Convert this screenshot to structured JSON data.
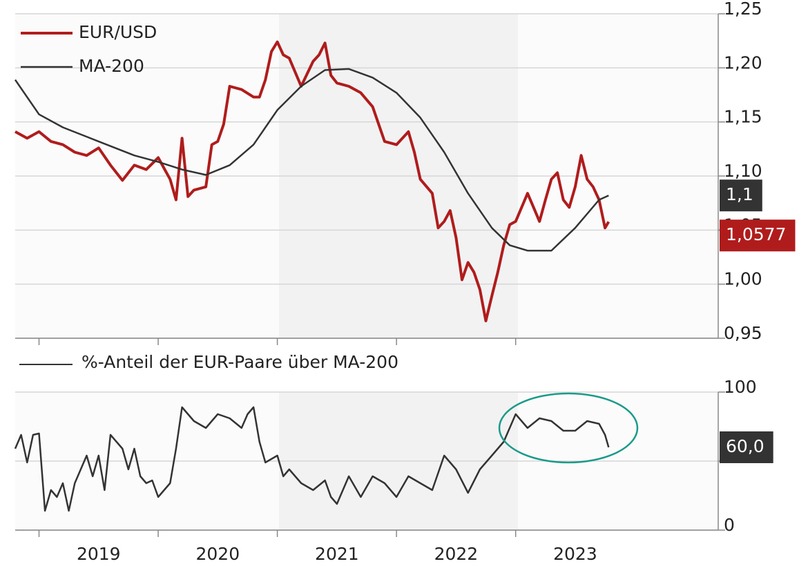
{
  "chart_data": [
    {
      "type": "line",
      "xlim": [
        2018.8,
        2024.7
      ],
      "ylim": [
        0.95,
        1.25
      ],
      "yticks": [
        {
          "value": 0.95,
          "label": "0,95"
        },
        {
          "value": 1.0,
          "label": "1,00"
        },
        {
          "value": 1.05,
          "label": "1,05"
        },
        {
          "value": 1.1,
          "label": "1,10"
        },
        {
          "value": 1.15,
          "label": "1,15"
        },
        {
          "value": 1.2,
          "label": "1,20"
        },
        {
          "value": 1.25,
          "label": "1,25"
        }
      ],
      "grid": true,
      "legend": "upper left",
      "series": [
        {
          "name": "EUR/USD",
          "color": "#b01c1c",
          "x": [
            2018.8,
            2018.9,
            2019.0,
            2019.1,
            2019.2,
            2019.3,
            2019.4,
            2019.5,
            2019.6,
            2019.7,
            2019.8,
            2019.9,
            2020.0,
            2020.1,
            2020.15,
            2020.2,
            2020.25,
            2020.3,
            2020.4,
            2020.45,
            2020.5,
            2020.55,
            2020.6,
            2020.7,
            2020.8,
            2020.85,
            2020.9,
            2020.95,
            2021.0,
            2021.05,
            2021.1,
            2021.2,
            2021.3,
            2021.35,
            2021.4,
            2021.45,
            2021.5,
            2021.6,
            2021.7,
            2021.8,
            2021.9,
            2022.0,
            2022.1,
            2022.15,
            2022.2,
            2022.3,
            2022.35,
            2022.4,
            2022.45,
            2022.5,
            2022.55,
            2022.6,
            2022.65,
            2022.7,
            2022.75,
            2022.8,
            2022.85,
            2022.9,
            2022.95,
            2023.0,
            2023.1,
            2023.15,
            2023.2,
            2023.25,
            2023.3,
            2023.35,
            2023.4,
            2023.45,
            2023.5,
            2023.55,
            2023.6,
            2023.65,
            2023.7,
            2023.75,
            2023.78
          ],
          "values": [
            1.141,
            1.135,
            1.141,
            1.132,
            1.129,
            1.122,
            1.119,
            1.126,
            1.11,
            1.096,
            1.11,
            1.106,
            1.117,
            1.097,
            1.078,
            1.135,
            1.081,
            1.087,
            1.09,
            1.129,
            1.132,
            1.148,
            1.183,
            1.18,
            1.173,
            1.173,
            1.189,
            1.215,
            1.224,
            1.212,
            1.209,
            1.183,
            1.206,
            1.212,
            1.223,
            1.193,
            1.186,
            1.183,
            1.177,
            1.164,
            1.132,
            1.129,
            1.141,
            1.122,
            1.097,
            1.084,
            1.052,
            1.058,
            1.068,
            1.043,
            1.004,
            1.02,
            1.011,
            0.995,
            0.966,
            0.989,
            1.011,
            1.036,
            1.055,
            1.058,
            1.084,
            1.071,
            1.058,
            1.078,
            1.097,
            1.103,
            1.078,
            1.071,
            1.09,
            1.119,
            1.097,
            1.09,
            1.078,
            1.052,
            1.0577
          ]
        },
        {
          "name": "MA-200",
          "color": "#333333",
          "x": [
            2018.8,
            2019.0,
            2019.2,
            2019.5,
            2019.8,
            2020.0,
            2020.2,
            2020.4,
            2020.6,
            2020.8,
            2021.0,
            2021.2,
            2021.4,
            2021.6,
            2021.8,
            2022.0,
            2022.2,
            2022.4,
            2022.6,
            2022.8,
            2022.95,
            2023.1,
            2023.3,
            2023.5,
            2023.7,
            2023.78
          ],
          "values": [
            1.189,
            1.157,
            1.145,
            1.132,
            1.119,
            1.113,
            1.106,
            1.101,
            1.11,
            1.129,
            1.161,
            1.183,
            1.198,
            1.199,
            1.191,
            1.177,
            1.154,
            1.122,
            1.084,
            1.052,
            1.036,
            1.031,
            1.031,
            1.052,
            1.078,
            1.082
          ]
        }
      ],
      "end_labels": [
        {
          "value": 1.082,
          "label": "1,1",
          "color": "#333333"
        },
        {
          "value": 1.0577,
          "label": "1,0577",
          "color": "#b01c1c"
        }
      ]
    },
    {
      "type": "line",
      "xlim": [
        2018.8,
        2024.7
      ],
      "xticks": [
        2019,
        2020,
        2021,
        2022,
        2023
      ],
      "ylim": [
        0,
        100
      ],
      "yticks": [
        0,
        100
      ],
      "ygrid": [
        50
      ],
      "grid": true,
      "legend": "above",
      "series": [
        {
          "name": "%-Anteil der EUR-Paare über MA-200",
          "color": "#333333",
          "x": [
            2018.8,
            2018.85,
            2018.9,
            2018.95,
            2019.0,
            2019.05,
            2019.1,
            2019.15,
            2019.2,
            2019.25,
            2019.3,
            2019.4,
            2019.45,
            2019.5,
            2019.55,
            2019.6,
            2019.7,
            2019.75,
            2019.8,
            2019.85,
            2019.9,
            2019.95,
            2020.0,
            2020.1,
            2020.15,
            2020.2,
            2020.3,
            2020.4,
            2020.5,
            2020.6,
            2020.7,
            2020.75,
            2020.8,
            2020.85,
            2020.9,
            2021.0,
            2021.05,
            2021.1,
            2021.2,
            2021.3,
            2021.4,
            2021.45,
            2021.5,
            2021.6,
            2021.7,
            2021.8,
            2021.9,
            2022.0,
            2022.1,
            2022.2,
            2022.3,
            2022.4,
            2022.5,
            2022.6,
            2022.7,
            2022.8,
            2022.9,
            2023.0,
            2023.1,
            2023.2,
            2023.3,
            2023.4,
            2023.5,
            2023.6,
            2023.7,
            2023.75,
            2023.78
          ],
          "values": [
            59,
            69,
            49,
            69,
            70,
            14,
            29,
            24,
            34,
            14,
            34,
            54,
            39,
            54,
            29,
            69,
            59,
            44,
            59,
            39,
            34,
            36,
            24,
            34,
            59,
            89,
            79,
            74,
            84,
            81,
            74,
            84,
            89,
            64,
            49,
            54,
            39,
            44,
            34,
            29,
            36,
            24,
            19,
            39,
            24,
            39,
            34,
            24,
            39,
            34,
            29,
            54,
            44,
            27,
            44,
            54,
            64,
            84,
            74,
            81,
            79,
            72,
            72,
            79,
            77,
            69,
            60
          ]
        }
      ],
      "end_labels": [
        {
          "value": 60,
          "label": "60,0",
          "color": "#333333"
        }
      ]
    }
  ]
}
